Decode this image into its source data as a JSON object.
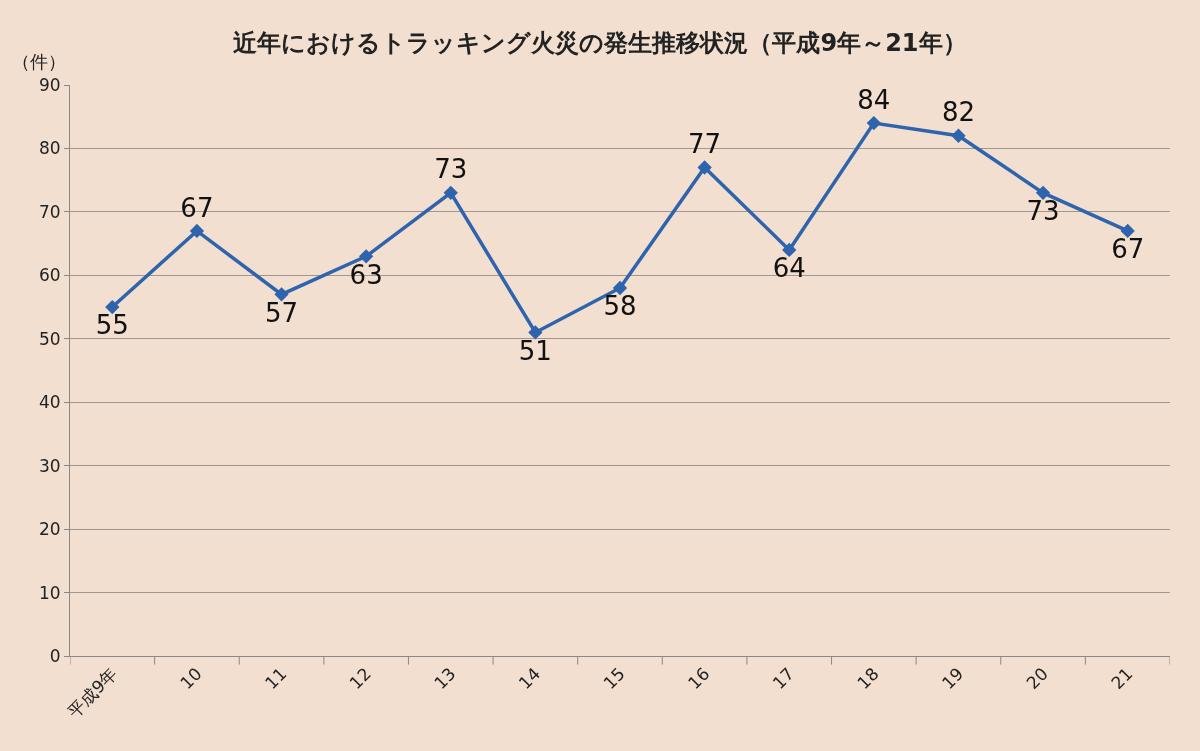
{
  "chart_data": {
    "type": "line",
    "title": "近年におけるトラッキング火災の発生推移状況（平成9年～21年）",
    "ylabel": "（件）",
    "categories": [
      "平成9年",
      "10",
      "11",
      "12",
      "13",
      "14",
      "15",
      "16",
      "17",
      "18",
      "19",
      "20",
      "21"
    ],
    "series": [
      {
        "color": "#2e64ae",
        "values": [
          55,
          67,
          57,
          63,
          73,
          51,
          58,
          77,
          64,
          84,
          82,
          73,
          67
        ]
      }
    ],
    "ylim": [
      0,
      90
    ],
    "yticks": [
      0,
      10,
      20,
      30,
      40,
      50,
      60,
      70,
      80,
      90
    ],
    "grid": "y",
    "marker": "diamond",
    "line_style": "solid",
    "data_labels": true
  }
}
